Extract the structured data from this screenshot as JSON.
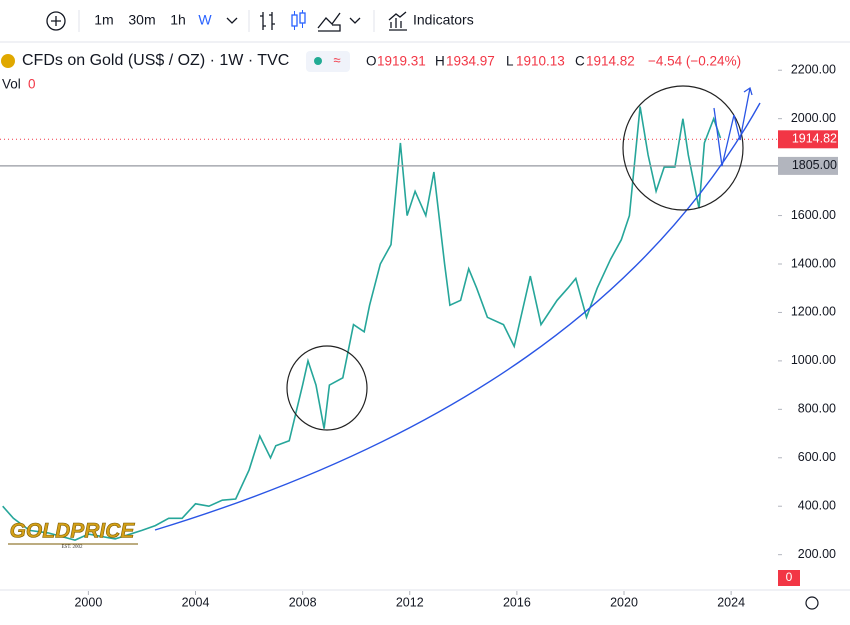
{
  "toolbar": {
    "intervals": [
      "1m",
      "30m",
      "1h",
      "W"
    ],
    "indicators": "Indicators"
  },
  "legend": {
    "symbol": "CFDs on Gold (US$ / OZ) · 1W · TVC",
    "o_label": "O",
    "open": "1919.31",
    "h_label": "H",
    "high": "1934.97",
    "l_label": "L",
    "low": "1910.13",
    "c_label": "C",
    "close": "1914.82",
    "change": "−4.54 (−0.24%)",
    "vol_label": "Vol",
    "vol_value": "0",
    "volume_badge": "0"
  },
  "logo": {
    "name": "GOLDPRICE",
    "est": "EST. 2002"
  },
  "chart_data": {
    "type": "line",
    "color": "#26a69a",
    "x": [
      1996.8,
      1997.2,
      1997.8,
      1998.5,
      1999.5,
      2000,
      2001,
      2002,
      2002.5,
      2003,
      2003.5,
      2004,
      2004.5,
      2005,
      2005.5,
      2006,
      2006.4,
      2006.8,
      2007,
      2007.5,
      2008,
      2008.2,
      2008.5,
      2008.8,
      2009,
      2009.5,
      2009.9,
      2010.3,
      2010.5,
      2010.9,
      2011.3,
      2011.65,
      2011.9,
      2012.2,
      2012.6,
      2012.9,
      2013.3,
      2013.5,
      2013.9,
      2014.2,
      2014.5,
      2014.9,
      2015.5,
      2015.9,
      2016.5,
      2016.9,
      2017.5,
      2017.9,
      2018.2,
      2018.6,
      2019,
      2019.5,
      2019.9,
      2020.2,
      2020.6,
      2020.9,
      2021.2,
      2021.5,
      2021.9,
      2022.2,
      2022.4,
      2022.8,
      2023,
      2023.35,
      2023.6
    ],
    "values": [
      400,
      350,
      300,
      290,
      260,
      285,
      265,
      300,
      320,
      350,
      350,
      410,
      400,
      425,
      430,
      550,
      690,
      600,
      650,
      670,
      900,
      1000,
      900,
      720,
      900,
      930,
      1150,
      1120,
      1230,
      1400,
      1480,
      1900,
      1600,
      1700,
      1600,
      1780,
      1400,
      1230,
      1250,
      1380,
      1300,
      1180,
      1150,
      1060,
      1350,
      1150,
      1250,
      1300,
      1340,
      1180,
      1300,
      1420,
      1500,
      1600,
      2050,
      1850,
      1700,
      1800,
      1800,
      2000,
      1850,
      1630,
      1900,
      2000,
      1920
    ],
    "xlim": [
      1996.7,
      2025.75
    ],
    "xticks": [
      2000,
      2004,
      2008,
      2012,
      2016,
      2020,
      2024
    ],
    "ylim": [
      50,
      2300
    ],
    "yticks": [
      {
        "value": 200,
        "label": "200.00"
      },
      {
        "value": 400,
        "label": "400.00"
      },
      {
        "value": 600,
        "label": "600.00"
      },
      {
        "value": 800,
        "label": "800.00"
      },
      {
        "value": 1000,
        "label": "1000.00"
      },
      {
        "value": 1200,
        "label": "1200.00"
      },
      {
        "value": 1400,
        "label": "1400.00"
      },
      {
        "value": 1600,
        "label": "1600.00"
      },
      {
        "value": 1800,
        "label": "1800.00"
      },
      {
        "value": 2000,
        "label": "2000.00"
      },
      {
        "value": 2200,
        "label": "2200.00"
      }
    ],
    "price_lines": [
      1914.82,
      {
        "value": 1805,
        "label": "1805.00"
      }
    ]
  }
}
